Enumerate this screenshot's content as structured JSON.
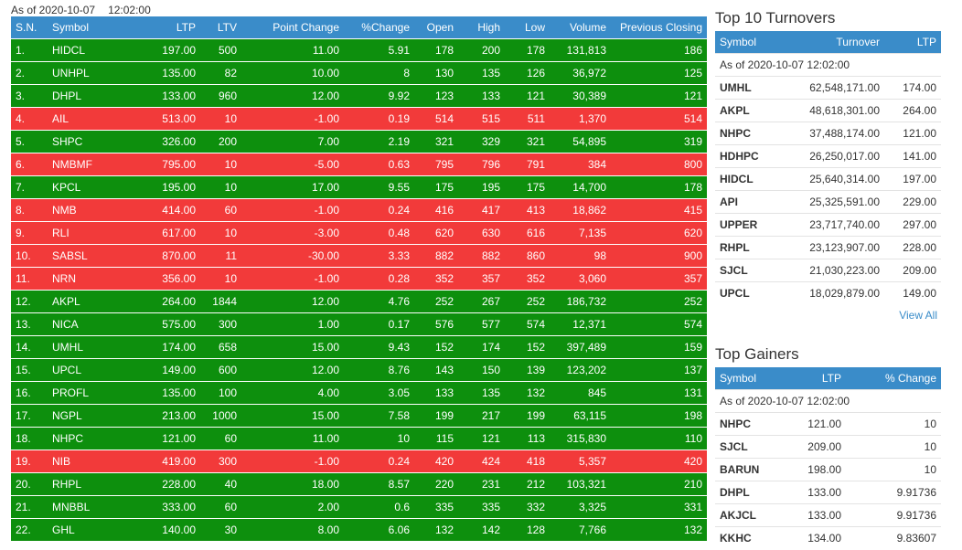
{
  "market": {
    "asof_date": "As of 2020-10-07",
    "asof_time": "12:02:00",
    "columns": [
      "S.N.",
      "Symbol",
      "LTP",
      "LTV",
      "Point Change",
      "%Change",
      "Open",
      "High",
      "Low",
      "Volume",
      "Previous Closing"
    ],
    "rows": [
      {
        "sn": "1.",
        "symbol": "HIDCL",
        "ltp": "197.00",
        "ltv": "500",
        "pc": "11.00",
        "pct": "5.91",
        "open": "178",
        "high": "200",
        "low": "178",
        "vol": "131,813",
        "prev": "186",
        "dir": "up"
      },
      {
        "sn": "2.",
        "symbol": "UNHPL",
        "ltp": "135.00",
        "ltv": "82",
        "pc": "10.00",
        "pct": "8",
        "open": "130",
        "high": "135",
        "low": "126",
        "vol": "36,972",
        "prev": "125",
        "dir": "up"
      },
      {
        "sn": "3.",
        "symbol": "DHPL",
        "ltp": "133.00",
        "ltv": "960",
        "pc": "12.00",
        "pct": "9.92",
        "open": "123",
        "high": "133",
        "low": "121",
        "vol": "30,389",
        "prev": "121",
        "dir": "up"
      },
      {
        "sn": "4.",
        "symbol": "AIL",
        "ltp": "513.00",
        "ltv": "10",
        "pc": "-1.00",
        "pct": "0.19",
        "open": "514",
        "high": "515",
        "low": "511",
        "vol": "1,370",
        "prev": "514",
        "dir": "down"
      },
      {
        "sn": "5.",
        "symbol": "SHPC",
        "ltp": "326.00",
        "ltv": "200",
        "pc": "7.00",
        "pct": "2.19",
        "open": "321",
        "high": "329",
        "low": "321",
        "vol": "54,895",
        "prev": "319",
        "dir": "up"
      },
      {
        "sn": "6.",
        "symbol": "NMBMF",
        "ltp": "795.00",
        "ltv": "10",
        "pc": "-5.00",
        "pct": "0.63",
        "open": "795",
        "high": "796",
        "low": "791",
        "vol": "384",
        "prev": "800",
        "dir": "down"
      },
      {
        "sn": "7.",
        "symbol": "KPCL",
        "ltp": "195.00",
        "ltv": "10",
        "pc": "17.00",
        "pct": "9.55",
        "open": "175",
        "high": "195",
        "low": "175",
        "vol": "14,700",
        "prev": "178",
        "dir": "up"
      },
      {
        "sn": "8.",
        "symbol": "NMB",
        "ltp": "414.00",
        "ltv": "60",
        "pc": "-1.00",
        "pct": "0.24",
        "open": "416",
        "high": "417",
        "low": "413",
        "vol": "18,862",
        "prev": "415",
        "dir": "down"
      },
      {
        "sn": "9.",
        "symbol": "RLI",
        "ltp": "617.00",
        "ltv": "10",
        "pc": "-3.00",
        "pct": "0.48",
        "open": "620",
        "high": "630",
        "low": "616",
        "vol": "7,135",
        "prev": "620",
        "dir": "down"
      },
      {
        "sn": "10.",
        "symbol": "SABSL",
        "ltp": "870.00",
        "ltv": "11",
        "pc": "-30.00",
        "pct": "3.33",
        "open": "882",
        "high": "882",
        "low": "860",
        "vol": "98",
        "prev": "900",
        "dir": "down"
      },
      {
        "sn": "11.",
        "symbol": "NRN",
        "ltp": "356.00",
        "ltv": "10",
        "pc": "-1.00",
        "pct": "0.28",
        "open": "352",
        "high": "357",
        "low": "352",
        "vol": "3,060",
        "prev": "357",
        "dir": "down"
      },
      {
        "sn": "12.",
        "symbol": "AKPL",
        "ltp": "264.00",
        "ltv": "1844",
        "pc": "12.00",
        "pct": "4.76",
        "open": "252",
        "high": "267",
        "low": "252",
        "vol": "186,732",
        "prev": "252",
        "dir": "up"
      },
      {
        "sn": "13.",
        "symbol": "NICA",
        "ltp": "575.00",
        "ltv": "300",
        "pc": "1.00",
        "pct": "0.17",
        "open": "576",
        "high": "577",
        "low": "574",
        "vol": "12,371",
        "prev": "574",
        "dir": "up"
      },
      {
        "sn": "14.",
        "symbol": "UMHL",
        "ltp": "174.00",
        "ltv": "658",
        "pc": "15.00",
        "pct": "9.43",
        "open": "152",
        "high": "174",
        "low": "152",
        "vol": "397,489",
        "prev": "159",
        "dir": "up"
      },
      {
        "sn": "15.",
        "symbol": "UPCL",
        "ltp": "149.00",
        "ltv": "600",
        "pc": "12.00",
        "pct": "8.76",
        "open": "143",
        "high": "150",
        "low": "139",
        "vol": "123,202",
        "prev": "137",
        "dir": "up"
      },
      {
        "sn": "16.",
        "symbol": "PROFL",
        "ltp": "135.00",
        "ltv": "100",
        "pc": "4.00",
        "pct": "3.05",
        "open": "133",
        "high": "135",
        "low": "132",
        "vol": "845",
        "prev": "131",
        "dir": "up"
      },
      {
        "sn": "17.",
        "symbol": "NGPL",
        "ltp": "213.00",
        "ltv": "1000",
        "pc": "15.00",
        "pct": "7.58",
        "open": "199",
        "high": "217",
        "low": "199",
        "vol": "63,115",
        "prev": "198",
        "dir": "up"
      },
      {
        "sn": "18.",
        "symbol": "NHPC",
        "ltp": "121.00",
        "ltv": "60",
        "pc": "11.00",
        "pct": "10",
        "open": "115",
        "high": "121",
        "low": "113",
        "vol": "315,830",
        "prev": "110",
        "dir": "up"
      },
      {
        "sn": "19.",
        "symbol": "NIB",
        "ltp": "419.00",
        "ltv": "300",
        "pc": "-1.00",
        "pct": "0.24",
        "open": "420",
        "high": "424",
        "low": "418",
        "vol": "5,357",
        "prev": "420",
        "dir": "down"
      },
      {
        "sn": "20.",
        "symbol": "RHPL",
        "ltp": "228.00",
        "ltv": "40",
        "pc": "18.00",
        "pct": "8.57",
        "open": "220",
        "high": "231",
        "low": "212",
        "vol": "103,321",
        "prev": "210",
        "dir": "up"
      },
      {
        "sn": "21.",
        "symbol": "MNBBL",
        "ltp": "333.00",
        "ltv": "60",
        "pc": "2.00",
        "pct": "0.6",
        "open": "335",
        "high": "335",
        "low": "332",
        "vol": "3,325",
        "prev": "331",
        "dir": "up"
      },
      {
        "sn": "22.",
        "symbol": "GHL",
        "ltp": "140.00",
        "ltv": "30",
        "pc": "8.00",
        "pct": "6.06",
        "open": "132",
        "high": "142",
        "low": "128",
        "vol": "7,766",
        "prev": "132",
        "dir": "up"
      }
    ],
    "colors": {
      "up": "#0d8f0d",
      "down": "#f23a3a",
      "header": "#3a8cc9"
    }
  },
  "turnovers": {
    "title": "Top 10 Turnovers",
    "columns": [
      "Symbol",
      "Turnover",
      "LTP"
    ],
    "asof": "As of 2020-10-07 12:02:00",
    "rows": [
      {
        "symbol": "UMHL",
        "turnover": "62,548,171.00",
        "ltp": "174.00"
      },
      {
        "symbol": "AKPL",
        "turnover": "48,618,301.00",
        "ltp": "264.00"
      },
      {
        "symbol": "NHPC",
        "turnover": "37,488,174.00",
        "ltp": "121.00"
      },
      {
        "symbol": "HDHPC",
        "turnover": "26,250,017.00",
        "ltp": "141.00"
      },
      {
        "symbol": "HIDCL",
        "turnover": "25,640,314.00",
        "ltp": "197.00"
      },
      {
        "symbol": "API",
        "turnover": "25,325,591.00",
        "ltp": "229.00"
      },
      {
        "symbol": "UPPER",
        "turnover": "23,717,740.00",
        "ltp": "297.00"
      },
      {
        "symbol": "RHPL",
        "turnover": "23,123,907.00",
        "ltp": "228.00"
      },
      {
        "symbol": "SJCL",
        "turnover": "21,030,223.00",
        "ltp": "209.00"
      },
      {
        "symbol": "UPCL",
        "turnover": "18,029,879.00",
        "ltp": "149.00"
      }
    ],
    "view_all": "View All"
  },
  "gainers": {
    "title": "Top Gainers",
    "columns": [
      "Symbol",
      "LTP",
      "% Change"
    ],
    "asof": "As of 2020-10-07 12:02:00",
    "rows": [
      {
        "symbol": "NHPC",
        "ltp": "121.00",
        "pct": "10"
      },
      {
        "symbol": "SJCL",
        "ltp": "209.00",
        "pct": "10"
      },
      {
        "symbol": "BARUN",
        "ltp": "198.00",
        "pct": "10"
      },
      {
        "symbol": "DHPL",
        "ltp": "133.00",
        "pct": "9.91736"
      },
      {
        "symbol": "AKJCL",
        "ltp": "133.00",
        "pct": "9.91736"
      },
      {
        "symbol": "KKHC",
        "ltp": "134.00",
        "pct": "9.83607"
      }
    ]
  }
}
